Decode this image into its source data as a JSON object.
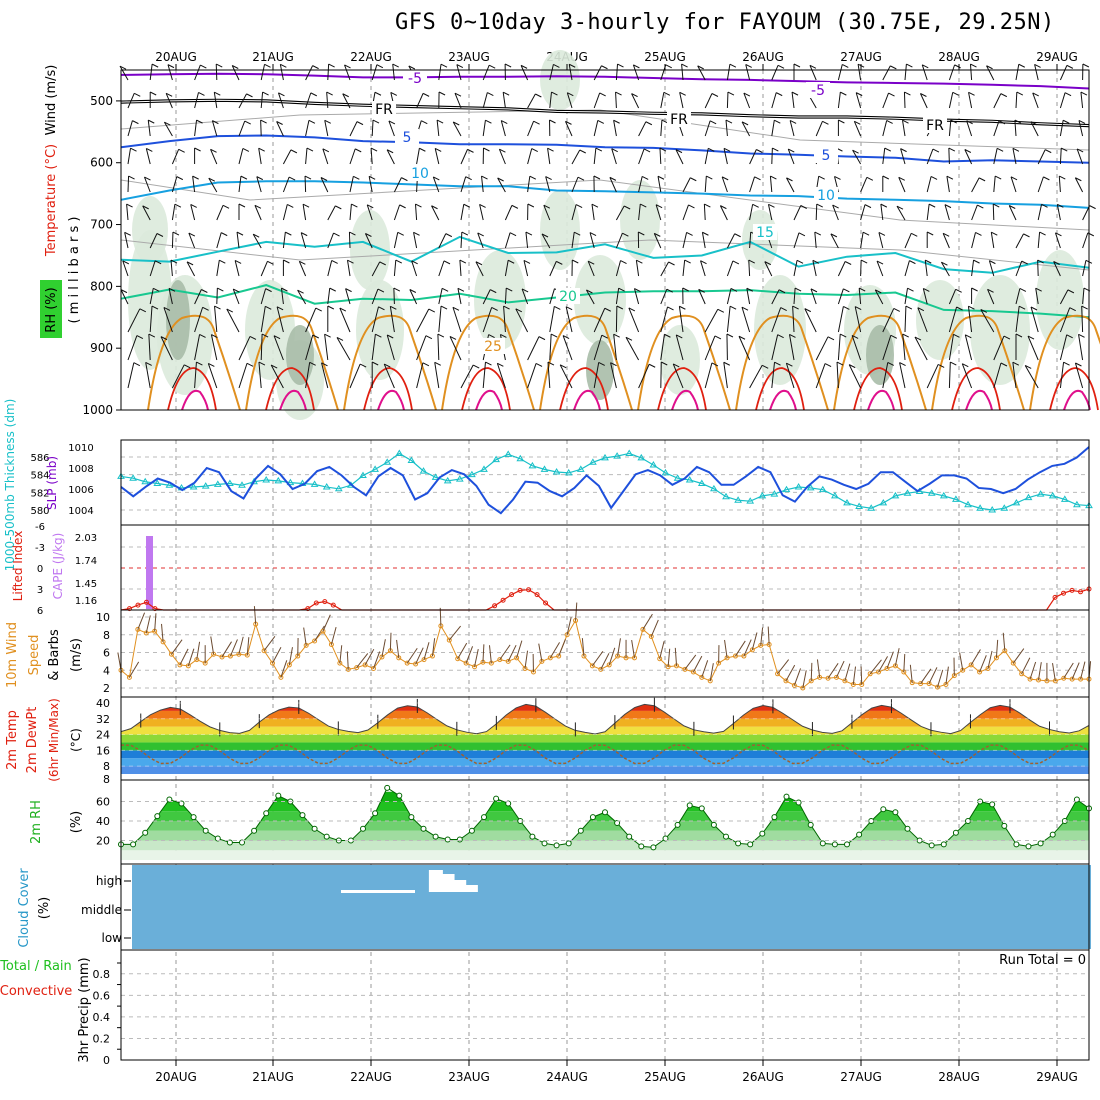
{
  "title": "GFS 0~10day 3-hourly for FAYOUM (30.75E, 29.25N)",
  "date_labels": [
    "20AUG",
    "21AUG",
    "22AUG",
    "23AUG",
    "24AUG",
    "25AUG",
    "26AUG",
    "27AUG",
    "28AUG",
    "29AUG"
  ],
  "colors": {
    "purple": "#7a00c8",
    "blue": "#1e50dc",
    "lightblue": "#16a0e0",
    "teal": "#18c0c8",
    "green": "#18c890",
    "orange": "#e09020",
    "red": "#e02010",
    "magenta": "#e0108c",
    "sky": "#6aafd9",
    "rhgreen": "#30d030"
  },
  "chart_data": [
    {
      "type": "contour",
      "name": "upper-air",
      "ylabel_parts": [
        "Wind (m/s)",
        "Temperature (°C)",
        "RH (%)"
      ],
      "yaxis_title": "( m i l l i b a r s )",
      "yticks": [
        500,
        600,
        700,
        800,
        900,
        1000
      ],
      "ylim": [
        450,
        1000
      ],
      "contour_labels": [
        "-5",
        "FR",
        "5",
        "10",
        "15",
        "20",
        "25"
      ],
      "isotherms": [
        {
          "label": "-5",
          "p": [
            458,
            457,
            456,
            457,
            459,
            462,
            462,
            461,
            461,
            460,
            461,
            463,
            465,
            466,
            468,
            470,
            471,
            472,
            474,
            476,
            480
          ]
        },
        {
          "label": "FR",
          "p": [
            502,
            500,
            499,
            500,
            504,
            507,
            509,
            511,
            513,
            517,
            518,
            520,
            521,
            524,
            526,
            526,
            528,
            531,
            533,
            537,
            540
          ]
        },
        {
          "label": "5",
          "p": [
            575,
            565,
            557,
            556,
            559,
            565,
            567,
            570,
            570,
            571,
            575,
            576,
            580,
            585,
            587,
            590,
            592,
            598,
            596,
            598,
            600
          ]
        },
        {
          "label": "10",
          "p": [
            660,
            645,
            632,
            630,
            630,
            632,
            635,
            638,
            638,
            645,
            646,
            648,
            650,
            653,
            654,
            658,
            660,
            662,
            666,
            668,
            673
          ]
        },
        {
          "label": "15",
          "p": [
            757,
            760,
            744,
            728,
            736,
            728,
            760,
            720,
            746,
            745,
            732,
            754,
            750,
            728,
            768,
            752,
            746,
            772,
            778,
            760,
            770
          ]
        },
        {
          "label": "20",
          "p": [
            820,
            805,
            818,
            798,
            828,
            820,
            822,
            812,
            826,
            818,
            810,
            808,
            808,
            806,
            812,
            814,
            810,
            838,
            840,
            844,
            850
          ]
        }
      ]
    },
    {
      "type": "line",
      "name": "thickness-slp",
      "ylabel_left": "1000-500mb Thickness (dm)",
      "ylabel_right": "SLP (mb)",
      "yticks_left": [
        580,
        582,
        584,
        586
      ],
      "yticks_right": [
        1004,
        1006,
        1008,
        1010
      ],
      "series": [
        {
          "name": "Thickness",
          "units": "dm",
          "values": [
            583.8,
            583.6,
            583.2,
            583.0,
            582.8,
            582.5,
            582.6,
            582.7,
            582.9,
            583.0,
            582.8,
            583.2,
            583.4,
            583.3,
            583.1,
            583.0,
            582.9,
            582.6,
            582.4,
            582.8,
            583.9,
            584.6,
            585.4,
            586.4,
            585.6,
            584.4,
            583.7,
            583.3,
            583.5,
            584.0,
            584.6,
            585.7,
            586.3,
            585.8,
            585.0,
            584.6,
            584.3,
            584.2,
            584.6,
            585.4,
            585.9,
            586.1,
            586.4,
            585.9,
            585.1,
            584.2,
            583.6,
            583.4,
            583.0,
            582.4,
            581.5,
            581.1,
            581.0,
            581.6,
            581.8,
            582.3,
            582.6,
            582.5,
            582.3,
            581.6,
            580.8,
            580.4,
            580.2,
            580.8,
            581.6,
            581.9,
            582.1,
            581.9,
            581.6,
            581.2,
            580.6,
            580.2,
            580.0,
            580.2,
            580.8,
            581.4,
            581.8,
            581.6,
            581.2,
            580.6,
            580.5
          ]
        },
        {
          "name": "SLP",
          "units": "mb",
          "values": [
            1006.2,
            1005.3,
            1006.2,
            1007.0,
            1006.6,
            1005.9,
            1006.6,
            1008.0,
            1007.6,
            1005.8,
            1005.1,
            1007.0,
            1008.2,
            1007.4,
            1006.0,
            1006.5,
            1007.7,
            1008.1,
            1007.3,
            1006.2,
            1005.4,
            1007.2,
            1008.0,
            1007.3,
            1005.0,
            1005.6,
            1007.1,
            1007.8,
            1007.4,
            1006.3,
            1004.5,
            1003.7,
            1005.0,
            1006.7,
            1006.6,
            1005.8,
            1005.3,
            1006.1,
            1007.3,
            1006.3,
            1004.2,
            1005.8,
            1007.4,
            1007.8,
            1007.3,
            1006.4,
            1007.0,
            1008.1,
            1007.6,
            1006.4,
            1006.4,
            1007.2,
            1008.1,
            1007.6,
            1005.4,
            1004.8,
            1006.2,
            1007.2,
            1006.9,
            1006.4,
            1006.0,
            1006.5,
            1007.6,
            1007.6,
            1006.7,
            1005.8,
            1006.5,
            1007.3,
            1007.3,
            1007.0,
            1006.1,
            1006.0,
            1005.6,
            1006.0,
            1006.9,
            1007.6,
            1008.2,
            1008.4,
            1009.0,
            1010.0
          ]
        }
      ]
    },
    {
      "type": "bar+line",
      "name": "cape-lifted-index",
      "ylabel_left": "Lifted Index",
      "ylabel_right": "CAPE (J/kg)",
      "yticks_left": [
        "-6",
        "-3",
        "0",
        "3",
        "6"
      ],
      "yticks_right": [
        "2.03",
        "1.74",
        "1.45",
        "1.16"
      ],
      "cape": {
        "index": 1,
        "value": 2.03
      },
      "lifted_index": [
        6,
        5.8,
        5.3,
        4.9,
        5.8,
        6,
        6,
        6,
        6,
        6,
        6,
        6,
        6,
        6,
        6,
        6,
        6,
        6,
        6,
        6,
        6,
        6,
        5.8,
        5,
        4.8,
        5.3,
        6,
        6,
        6,
        6,
        6,
        6,
        6,
        6,
        6,
        6,
        6,
        6,
        6,
        6,
        6,
        6,
        6,
        6,
        5.4,
        4.6,
        3.8,
        3.2,
        3.1,
        3.8,
        5,
        6,
        6,
        6,
        6,
        6,
        6,
        6,
        6,
        6,
        6,
        6,
        6,
        6,
        6,
        6,
        6,
        6,
        6,
        6,
        6,
        6,
        6,
        6,
        6,
        6,
        6,
        6,
        6,
        6,
        6,
        6,
        6,
        6,
        6,
        6,
        6,
        6,
        6,
        6,
        6,
        6,
        6,
        6,
        6,
        6,
        6,
        6,
        6,
        6,
        6,
        6,
        6,
        6,
        6,
        6,
        6,
        6,
        6,
        6,
        4.2,
        3.6,
        3.2,
        3.4,
        3.0
      ]
    },
    {
      "type": "line",
      "name": "wind10m",
      "ylabel": "10m Wind Speed & Barbs (m/s)",
      "yticks": [
        2,
        4,
        6,
        8,
        10
      ],
      "values": [
        4.0,
        3.2,
        8.6,
        8.2,
        8.4,
        7.2,
        5.8,
        4.6,
        4.5,
        5.2,
        4.8,
        5.8,
        5.5,
        5.6,
        5.8,
        5.7,
        9.2,
        6.2,
        4.8,
        3.2,
        4.6,
        5.6,
        6.8,
        7.3,
        8.4,
        6.9,
        4.8,
        4.1,
        4.3,
        4.6,
        4.2,
        5.5,
        6.2,
        5.4,
        4.8,
        4.7,
        5.2,
        5.6,
        9.0,
        7.4,
        5.3,
        4.8,
        4.4,
        4.9,
        4.8,
        5.2,
        5.0,
        5.4,
        4.2,
        3.8,
        5.0,
        5.4,
        5.6,
        8.0,
        9.6,
        5.6,
        4.5,
        4.1,
        4.6,
        5.6,
        5.4,
        5.4,
        8.6,
        7.8,
        5.3,
        4.4,
        4.5,
        4.1,
        3.8,
        3.2,
        2.8,
        4.8,
        5.4,
        5.6,
        5.6,
        6.3,
        6.8,
        6.9,
        3.6,
        2.8,
        2.3,
        2.0,
        2.8,
        3.2,
        3.1,
        3.2,
        2.8,
        2.4,
        2.4,
        3.6,
        3.8,
        4.2,
        4.5,
        3.8,
        2.6,
        2.5,
        2.5,
        2.1,
        2.4,
        3.4,
        4.0,
        4.6,
        3.8,
        4.2,
        5.4,
        6.2,
        4.8,
        3.6,
        3.0,
        2.9,
        2.8,
        2.8,
        3.1,
        3.0,
        3.0,
        3.0
      ]
    },
    {
      "type": "area",
      "name": "temperature2m",
      "ylabel": "2m Temp 2m DewPt (6hr Min/Max) (°C)",
      "yticks": [
        "8",
        "16",
        "24",
        "32",
        "40"
      ],
      "extra_tick": "8",
      "temp": [
        25.5,
        27.0,
        30.6,
        34.1,
        36.4,
        37.8,
        37.0,
        34.0,
        30.8,
        27.9,
        26.1,
        25.0,
        24.6,
        26.1,
        30.3,
        34.0,
        36.5,
        37.9,
        37.5,
        34.8,
        31.5,
        28.3,
        26.6,
        25.6,
        25.0,
        26.3,
        30.0,
        34.0,
        37.4,
        38.6,
        38.0,
        35.0,
        31.6,
        28.4,
        26.4,
        25.2,
        24.4,
        25.5,
        29.4,
        33.9,
        37.5,
        39.3,
        38.4,
        35.2,
        31.7,
        28.3,
        26.1,
        25.1,
        24.3,
        25.4,
        29.8,
        34.2,
        37.7,
        39.3,
        38.6,
        35.4,
        31.9,
        28.4,
        26.4,
        25.4,
        24.7,
        25.6,
        29.6,
        33.8,
        37.3,
        38.7,
        37.8,
        34.8,
        31.5,
        28.2,
        26.3,
        25.1,
        24.6,
        25.9,
        30.0,
        34.0,
        37.4,
        38.8,
        37.9,
        34.8,
        31.4,
        28.1,
        26.2,
        25.2,
        24.5,
        26.0,
        30.2,
        34.1,
        37.6,
        38.8,
        37.9,
        34.9,
        31.4,
        28.2,
        26.6,
        25.4,
        24.8,
        25.9,
        28.6
      ]
    },
    {
      "type": "area",
      "name": "rh2m",
      "ylabel": "2m RH (%)",
      "yticks": [
        20,
        40,
        60
      ],
      "values": [
        16,
        16,
        28,
        45,
        62,
        58,
        44,
        30,
        22,
        18,
        18,
        30,
        48,
        66,
        60,
        46,
        32,
        24,
        20,
        20,
        32,
        48,
        74,
        66,
        44,
        32,
        24,
        21,
        21,
        30,
        44,
        63,
        58,
        40,
        24,
        17,
        15,
        17,
        30,
        44,
        49,
        38,
        24,
        14,
        13,
        22,
        36,
        56,
        53,
        36,
        24,
        17,
        16,
        27,
        44,
        65,
        59,
        36,
        17,
        16,
        16,
        26,
        40,
        52,
        49,
        32,
        20,
        15,
        16,
        28,
        40,
        60,
        57,
        35,
        16,
        14,
        17,
        26,
        40,
        62,
        53
      ]
    },
    {
      "type": "bar",
      "name": "cloud-cover",
      "ylabel": "Cloud Cover (%)",
      "yticks": [
        "high",
        "middle",
        "low"
      ],
      "high_cloud": [
        0,
        0,
        0,
        0,
        0,
        0,
        0,
        0,
        0,
        0,
        0,
        0,
        0,
        0,
        0,
        0,
        0,
        0,
        0,
        0,
        0,
        0,
        0,
        0,
        0,
        0,
        0,
        22,
        18,
        12,
        7,
        0,
        0,
        0,
        0,
        0,
        0,
        0,
        0,
        0,
        0,
        0,
        0,
        0,
        0,
        0,
        0,
        0,
        0,
        0,
        0,
        0,
        0,
        0,
        0,
        0,
        0,
        0,
        0,
        0,
        0,
        0,
        0,
        0,
        0,
        0,
        0,
        0,
        0,
        0,
        0,
        0,
        0,
        0,
        0,
        0,
        0,
        0,
        0,
        0,
        0,
        0,
        0,
        0
      ]
    },
    {
      "type": "bar",
      "name": "precip",
      "ylabel": "3hr Precip (mm)",
      "legend": [
        "Total / Rain",
        "Convective"
      ],
      "yticks": [
        "0",
        "0.2",
        "0.4",
        "0.6",
        "0.8"
      ],
      "run_total_text": "Run Total = 0",
      "values": []
    }
  ]
}
